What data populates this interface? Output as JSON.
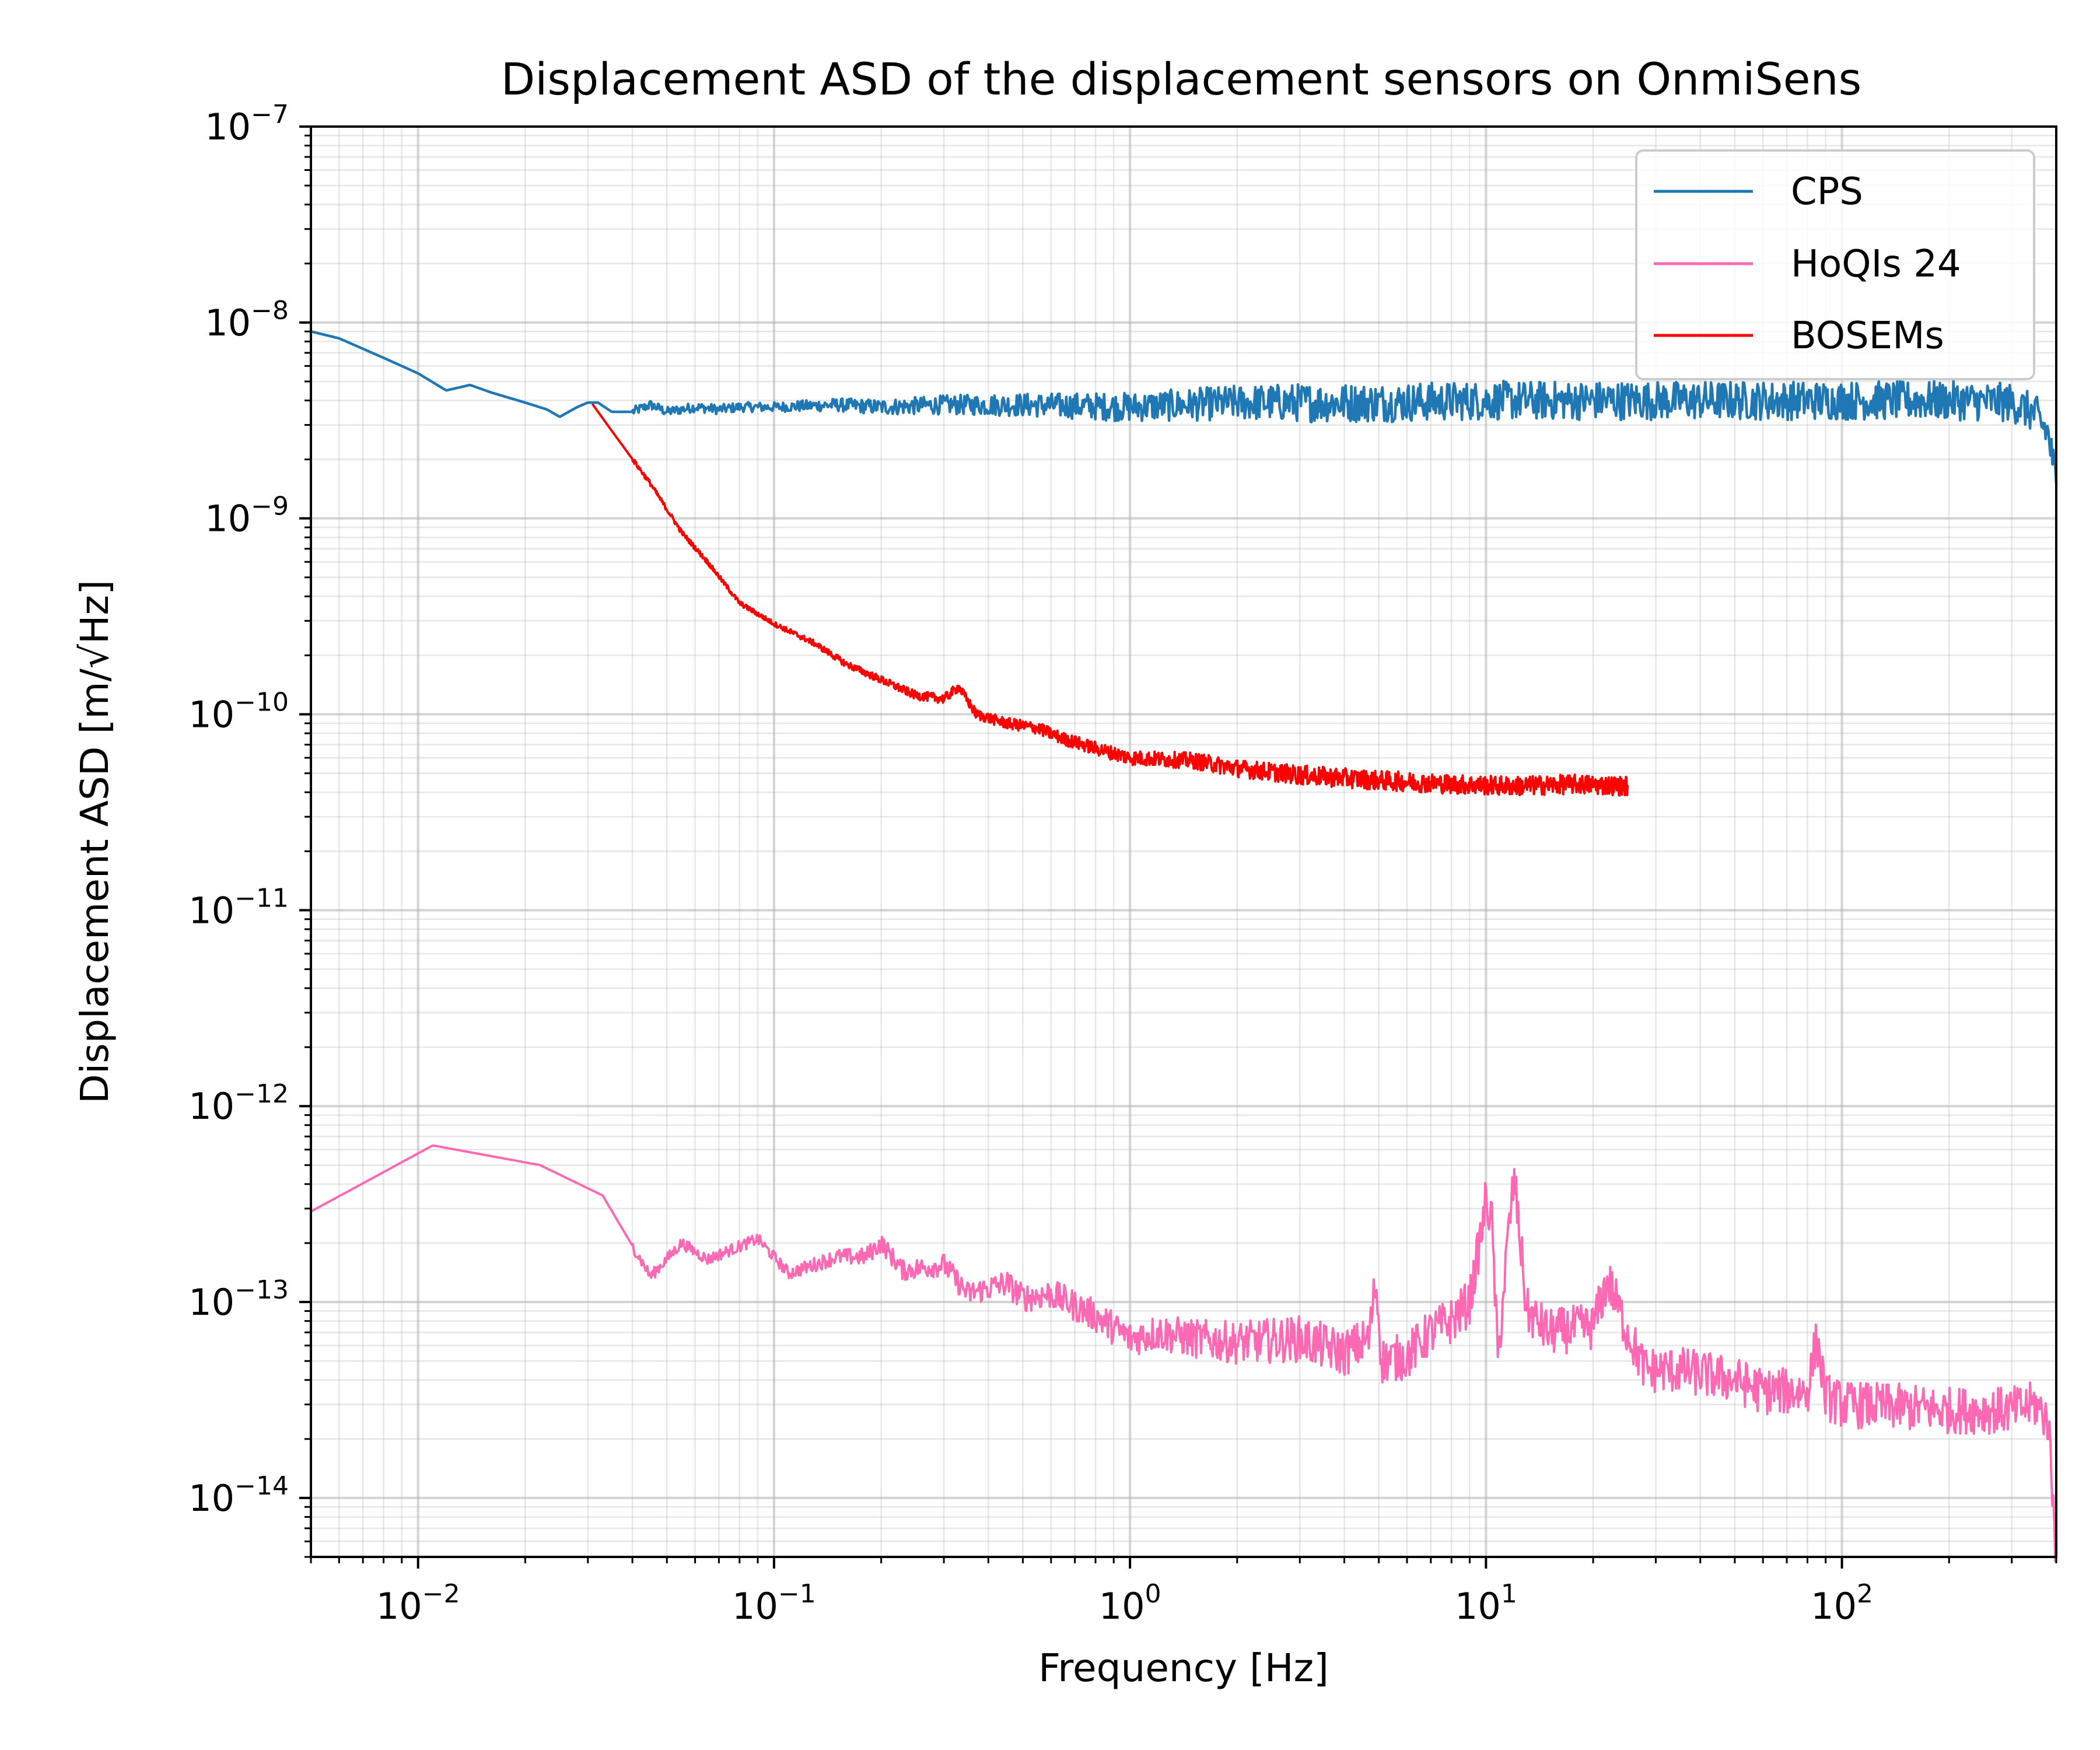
{
  "chart_data": {
    "type": "line",
    "title": "Displacement ASD of the displacement sensors on OnmiSens",
    "xlabel": "Frequency [Hz]",
    "ylabel": "Displacement ASD [m/√Hz]",
    "xscale": "log",
    "yscale": "log",
    "xlim": [
      0.005,
      400
    ],
    "ylim": [
      5e-15,
      1e-07
    ],
    "grid": "major and minor",
    "legend": "top-right",
    "x_ticks": [
      {
        "value": 0.01,
        "base": "10",
        "exp": "−2"
      },
      {
        "value": 0.1,
        "base": "10",
        "exp": "−1"
      },
      {
        "value": 1,
        "base": "10",
        "exp": "0"
      },
      {
        "value": 10,
        "base": "10",
        "exp": "1"
      },
      {
        "value": 100,
        "base": "10",
        "exp": "2"
      }
    ],
    "y_ticks": [
      {
        "value": 1e-07,
        "base": "10",
        "exp": "−7"
      },
      {
        "value": 1e-08,
        "base": "10",
        "exp": "−8"
      },
      {
        "value": 1e-09,
        "base": "10",
        "exp": "−9"
      },
      {
        "value": 1e-10,
        "base": "10",
        "exp": "−10"
      },
      {
        "value": 1e-11,
        "base": "10",
        "exp": "−11"
      },
      {
        "value": 1e-12,
        "base": "10",
        "exp": "−12"
      },
      {
        "value": 1e-13,
        "base": "10",
        "exp": "−13"
      },
      {
        "value": 1e-14,
        "base": "10",
        "exp": "−14"
      }
    ],
    "series": [
      {
        "name": "CPS",
        "color": "#1f77b4",
        "points": [
          [
            0.005,
            9e-09
          ],
          [
            0.006,
            8.3e-09
          ],
          [
            0.008,
            6.6e-09
          ],
          [
            0.01,
            5.5e-09
          ],
          [
            0.012,
            4.5e-09
          ],
          [
            0.014,
            4.8e-09
          ],
          [
            0.016,
            4.4e-09
          ],
          [
            0.02,
            3.9e-09
          ],
          [
            0.023,
            3.6e-09
          ],
          [
            0.025,
            3.3e-09
          ],
          [
            0.028,
            3.7e-09
          ],
          [
            0.03,
            3.9e-09
          ],
          [
            0.032,
            3.9e-09
          ],
          [
            0.035,
            3.5e-09
          ],
          [
            0.04,
            3.5e-09
          ],
          [
            0.045,
            3.8e-09
          ],
          [
            0.05,
            3.5e-09
          ],
          [
            0.06,
            3.7e-09
          ],
          [
            0.07,
            3.6e-09
          ],
          [
            0.08,
            3.7e-09
          ],
          [
            0.1,
            3.7e-09
          ],
          [
            0.15,
            3.8e-09
          ],
          [
            0.2,
            3.7e-09
          ],
          [
            0.3,
            3.8e-09
          ],
          [
            0.5,
            3.8e-09
          ],
          [
            1,
            3.7e-09
          ],
          [
            2,
            3.9e-09
          ],
          [
            5,
            3.9e-09
          ],
          [
            10,
            4e-09
          ],
          [
            20,
            4e-09
          ],
          [
            50,
            4e-09
          ],
          [
            100,
            4e-09
          ],
          [
            200,
            4e-09
          ],
          [
            300,
            3.9e-09
          ],
          [
            350,
            3.4e-09
          ],
          [
            380,
            2.7e-09
          ],
          [
            400,
            1.5e-09
          ]
        ]
      },
      {
        "name": "HoQIs 24",
        "color": "#ff69b4",
        "points": [
          [
            0.005,
            2.9e-13
          ],
          [
            0.011,
            6.3e-13
          ],
          [
            0.022,
            5e-13
          ],
          [
            0.033,
            3.5e-13
          ],
          [
            0.045,
            1.35e-13
          ],
          [
            0.055,
            2e-13
          ],
          [
            0.065,
            1.65e-13
          ],
          [
            0.09,
            2.1e-13
          ],
          [
            0.11,
            1.4e-13
          ],
          [
            0.15,
            1.7e-13
          ],
          [
            0.18,
            1.7e-13
          ],
          [
            0.2,
            2e-13
          ],
          [
            0.23,
            1.45e-13
          ],
          [
            0.3,
            1.55e-13
          ],
          [
            0.35,
            1.1e-13
          ],
          [
            0.45,
            1.25e-13
          ],
          [
            0.5,
            1.05e-13
          ],
          [
            0.6,
            1.1e-13
          ],
          [
            0.8,
            8.5e-14
          ],
          [
            1,
            6.5e-14
          ],
          [
            1.2,
            7e-14
          ],
          [
            1.5,
            6.5e-14
          ],
          [
            2,
            6.2e-14
          ],
          [
            3,
            6.5e-14
          ],
          [
            4,
            5.5e-14
          ],
          [
            4.7,
            6.5e-14
          ],
          [
            4.9,
            1.3e-13
          ],
          [
            5.1,
            5e-14
          ],
          [
            6,
            5.3e-14
          ],
          [
            7,
            7e-14
          ],
          [
            8,
            8e-14
          ],
          [
            9,
            1e-13
          ],
          [
            9.8,
            2.5e-13
          ],
          [
            10,
            3.4e-13
          ],
          [
            10.4,
            2.5e-13
          ],
          [
            10.8,
            5e-14
          ],
          [
            11.5,
            2e-13
          ],
          [
            12,
            4.3e-13
          ],
          [
            12.5,
            2e-13
          ],
          [
            13,
            9e-14
          ],
          [
            15,
            7e-14
          ],
          [
            20,
            7.5e-14
          ],
          [
            22,
            1.3e-13
          ],
          [
            25,
            7e-14
          ],
          [
            28,
            4.5e-14
          ],
          [
            35,
            4.5e-14
          ],
          [
            50,
            4e-14
          ],
          [
            60,
            3.5e-14
          ],
          [
            80,
            3.5e-14
          ],
          [
            85,
            6.5e-14
          ],
          [
            90,
            3.3e-14
          ],
          [
            100,
            3e-14
          ],
          [
            150,
            2.9e-14
          ],
          [
            200,
            2.8e-14
          ],
          [
            300,
            2.8e-14
          ],
          [
            350,
            3e-14
          ],
          [
            380,
            2.5e-14
          ],
          [
            400,
            5e-15
          ]
        ]
      },
      {
        "name": "BOSEMs",
        "color": "#ff0000",
        "points": [
          [
            0.031,
            3.8e-09
          ],
          [
            0.035,
            2.8e-09
          ],
          [
            0.045,
            1.5e-09
          ],
          [
            0.055,
            8.5e-10
          ],
          [
            0.065,
            6e-10
          ],
          [
            0.08,
            3.7e-10
          ],
          [
            0.1,
            2.9e-10
          ],
          [
            0.13,
            2.3e-10
          ],
          [
            0.16,
            1.8e-10
          ],
          [
            0.2,
            1.5e-10
          ],
          [
            0.25,
            1.25e-10
          ],
          [
            0.3,
            1.2e-10
          ],
          [
            0.33,
            1.38e-10
          ],
          [
            0.37,
            1e-10
          ],
          [
            0.45,
            9e-11
          ],
          [
            0.55,
            8.5e-11
          ],
          [
            0.65,
            7.5e-11
          ],
          [
            0.8,
            6.7e-11
          ],
          [
            1,
            6e-11
          ],
          [
            1.5,
            5.8e-11
          ],
          [
            2,
            5.3e-11
          ],
          [
            3,
            4.9e-11
          ],
          [
            5,
            4.6e-11
          ],
          [
            8,
            4.4e-11
          ],
          [
            12,
            4.3e-11
          ],
          [
            18,
            4.4e-11
          ],
          [
            25,
            4.3e-11
          ]
        ]
      }
    ]
  }
}
